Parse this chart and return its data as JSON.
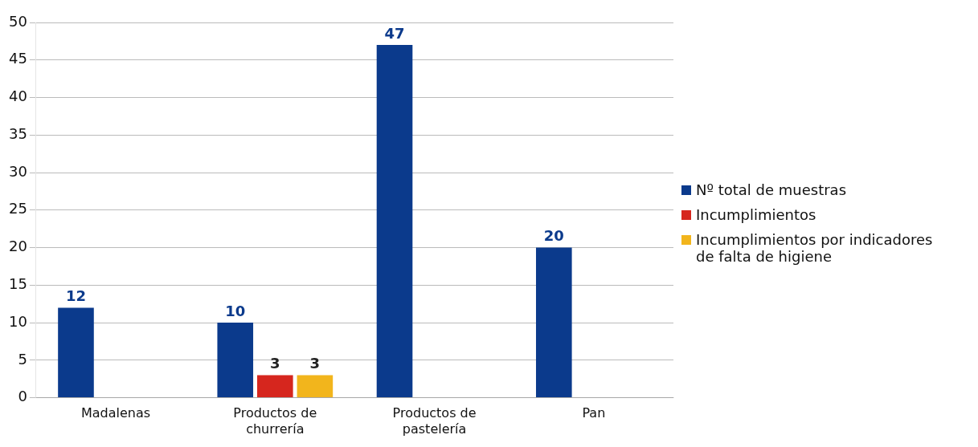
{
  "chart_data": {
    "type": "bar",
    "categories": [
      "Madalenas",
      "Productos de churrería",
      "Productos de pastelería",
      "Pan"
    ],
    "series": [
      {
        "name": "Nº total de muestras",
        "color": "#0b3a8c",
        "values": [
          12,
          10,
          47,
          20
        ]
      },
      {
        "name": "Incumplimientos",
        "color": "#d6261e",
        "values": [
          null,
          3,
          null,
          null
        ]
      },
      {
        "name": "Incumplimientos por indicadores de falta de higiene",
        "color": "#f2b51c",
        "values": [
          null,
          3,
          null,
          null
        ]
      }
    ],
    "ylim": [
      0,
      50
    ],
    "yticks": [
      0,
      5,
      10,
      15,
      20,
      25,
      30,
      35,
      40,
      45,
      50
    ],
    "grid": "y",
    "legend": "right",
    "data_labels": true
  }
}
